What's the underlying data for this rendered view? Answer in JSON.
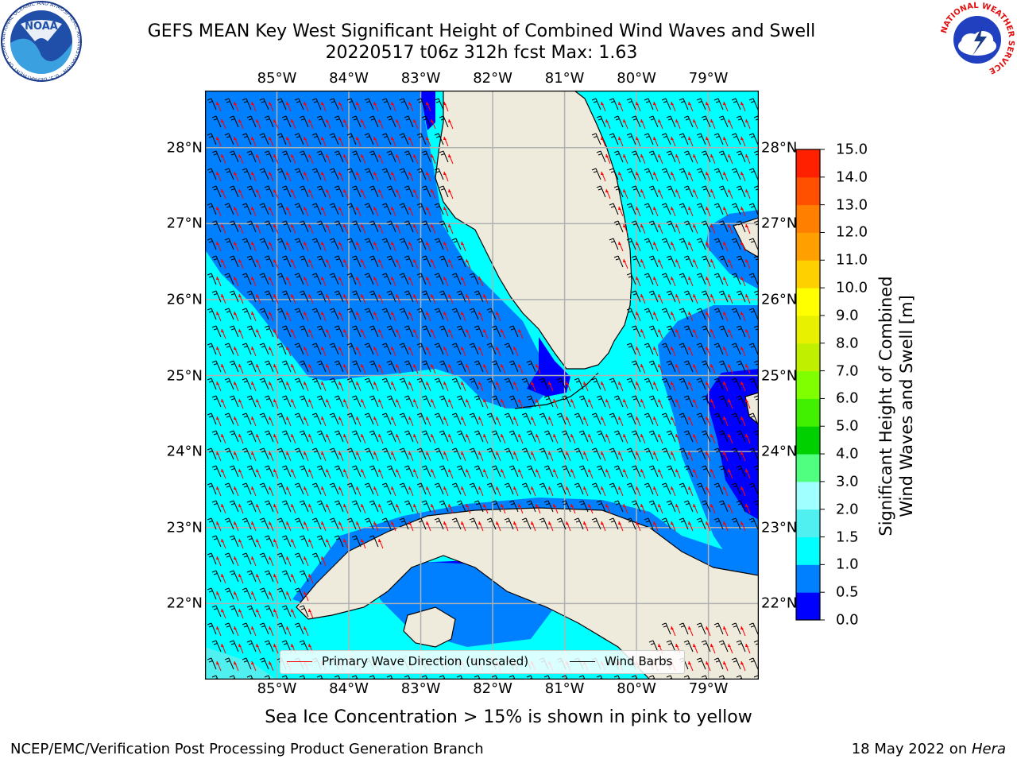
{
  "title_line1": "GEFS MEAN Key West Significant Height of Combined Wind Waves and Swell",
  "title_line2": "20220517 t06z 312h fcst   Max: 1.63",
  "lon_labels": [
    "85°W",
    "84°W",
    "83°W",
    "82°W",
    "81°W",
    "80°W",
    "79°W"
  ],
  "lat_labels": [
    "28°N",
    "27°N",
    "26°N",
    "25°N",
    "24°N",
    "23°N",
    "22°N"
  ],
  "map_extent": {
    "lon_min": -86.0,
    "lon_max": -78.3,
    "lat_min": 21.0,
    "lat_max": 28.75
  },
  "colorbar": {
    "title_line1": "Significant Height of Combined",
    "title_line2": "Wind Waves and Swell [m]",
    "ticks": [
      "0.0",
      "0.5",
      "1.0",
      "1.5",
      "2.0",
      "3.0",
      "4.0",
      "5.0",
      "6.0",
      "7.0",
      "8.0",
      "9.0",
      "10.0",
      "11.0",
      "12.0",
      "13.0",
      "14.0",
      "15.0"
    ],
    "colors": [
      "#0000ff",
      "#0080ff",
      "#00ffff",
      "#50f0f0",
      "#a0ffff",
      "#50ff80",
      "#00d000",
      "#40f000",
      "#80ff00",
      "#c0f000",
      "#e8f000",
      "#ffff00",
      "#ffd000",
      "#ffa000",
      "#ff8000",
      "#ff5000",
      "#ff2000"
    ]
  },
  "legend": {
    "wave_label": "Primary Wave Direction (unscaled)",
    "wind_label": "Wind Barbs",
    "wave_color": "#ff0000",
    "wind_color": "#000000"
  },
  "footer_note": "Sea Ice Concentration > 15% is shown in pink to yellow",
  "credit_left": "NCEP/EMC/Verification Post Processing Product Generation Branch",
  "credit_right_prefix": "18 May 2022 on ",
  "credit_right_host": "Hera",
  "logos": {
    "left": "NOAA",
    "left_ring_text": "NATIONAL OCEANIC AND ATMOSPHERIC ADMINISTRATION · U.S. DEPARTMENT OF COMMERCE",
    "right_ring_text": "NATIONAL WEATHER SERVICE"
  },
  "colors": {
    "land": "#eeebdc",
    "grid": "#b0b0b0"
  }
}
